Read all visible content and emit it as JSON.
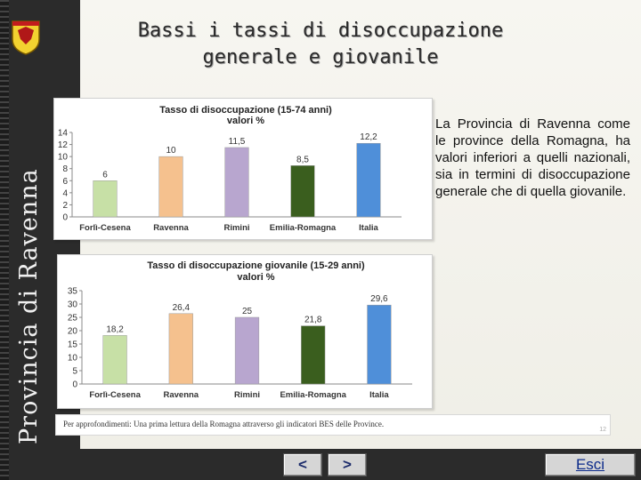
{
  "sidebar": {
    "vertical_title": "Provincia di Ravenna"
  },
  "slide": {
    "title_line1": "Bassi i tassi di disoccupazione",
    "title_line2": "generale e giovanile",
    "description": "La Provincia di Ravenna come le province della Romagna, ha valori inferiori a quelli nazionali, sia in termini di disoccupazione generale che di quella giovanile.",
    "footnote": "Per approfondimenti: Una prima lettura della Romagna attraverso gli indicatori BES delle Province.",
    "page_number": "12"
  },
  "nav": {
    "prev_label": "<",
    "next_label": ">",
    "exit_label": "Esci"
  },
  "colors": [
    "#c7e0a6",
    "#f5c18e",
    "#b8a6cf",
    "#3a5e1e",
    "#4f8fd9"
  ],
  "chart_data": [
    {
      "type": "bar",
      "title_line1": "Tasso di disoccupazione (15-74 anni)",
      "title_line2": "valori %",
      "categories": [
        "Forlì-Cesena",
        "Ravenna",
        "Rimini",
        "Emilia-Romagna",
        "Italia"
      ],
      "values": [
        6,
        10,
        11.5,
        8.5,
        12.2
      ],
      "value_labels": [
        "6",
        "10",
        "11,5",
        "8,5",
        "12,2"
      ],
      "ylim": [
        0,
        14
      ],
      "yticks": [
        0,
        2,
        4,
        6,
        8,
        10,
        12,
        14
      ],
      "grid": false
    },
    {
      "type": "bar",
      "title_line1": "Tasso di disoccupazione giovanile (15-29 anni)",
      "title_line2": "valori %",
      "categories": [
        "Forlì-Cesena",
        "Ravenna",
        "Rimini",
        "Emilia-Romagna",
        "Italia"
      ],
      "values": [
        18.2,
        26.4,
        25,
        21.8,
        29.6
      ],
      "value_labels": [
        "18,2",
        "26,4",
        "25",
        "21,8",
        "29,6"
      ],
      "ylim": [
        0,
        35
      ],
      "yticks": [
        0,
        5,
        10,
        15,
        20,
        25,
        30,
        35
      ],
      "grid": false
    }
  ]
}
